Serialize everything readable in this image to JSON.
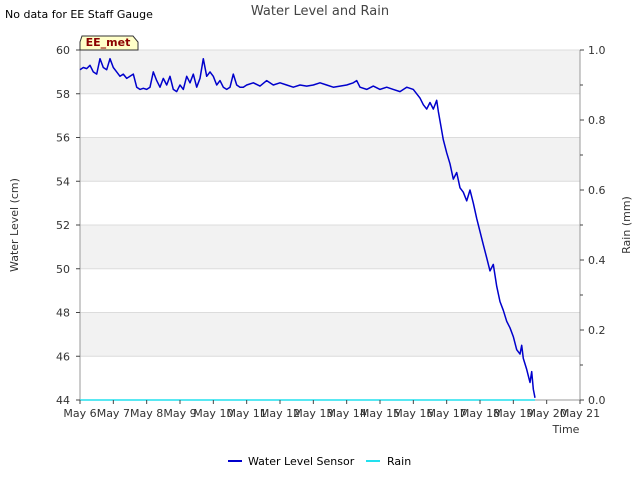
{
  "chart_data": {
    "type": "line",
    "title": "Water Level and Rain",
    "corner_note": "No data for EE Staff Gauge",
    "station_label": "EE_met",
    "xlabel": "Time",
    "ylabel_left": "Water Level (cm)",
    "ylabel_right": "Rain (mm)",
    "x_range_days": [
      0,
      15
    ],
    "ylim_left": [
      44,
      60
    ],
    "ylim_right": [
      0.0,
      1.0
    ],
    "x_ticks": [
      {
        "day": 0,
        "label": "May 6"
      },
      {
        "day": 1,
        "label": "May 7"
      },
      {
        "day": 2,
        "label": "May 8"
      },
      {
        "day": 3,
        "label": "May 9"
      },
      {
        "day": 4,
        "label": "May 10"
      },
      {
        "day": 5,
        "label": "May 11"
      },
      {
        "day": 6,
        "label": "May 12"
      },
      {
        "day": 7,
        "label": "May 13"
      },
      {
        "day": 8,
        "label": "May 14"
      },
      {
        "day": 9,
        "label": "May 15"
      },
      {
        "day": 10,
        "label": "May 16"
      },
      {
        "day": 11,
        "label": "May 17"
      },
      {
        "day": 12,
        "label": "May 18"
      },
      {
        "day": 13,
        "label": "May 19"
      },
      {
        "day": 14,
        "label": "May 20"
      },
      {
        "day": 15,
        "label": "May 21"
      }
    ],
    "y_ticks_left": [
      {
        "value": 44,
        "label": "44"
      },
      {
        "value": 46,
        "label": "46"
      },
      {
        "value": 48,
        "label": "48"
      },
      {
        "value": 50,
        "label": "50"
      },
      {
        "value": 52,
        "label": "52"
      },
      {
        "value": 54,
        "label": "54"
      },
      {
        "value": 56,
        "label": "56"
      },
      {
        "value": 58,
        "label": "58"
      },
      {
        "value": 60,
        "label": "60"
      }
    ],
    "y_ticks_right": [
      {
        "value": 0.0,
        "label": "0.0"
      },
      {
        "value": 0.2,
        "label": "0.2"
      },
      {
        "value": 0.4,
        "label": "0.4"
      },
      {
        "value": 0.6,
        "label": "0.6"
      },
      {
        "value": 0.8,
        "label": "0.8"
      },
      {
        "value": 1.0,
        "label": "1.0"
      }
    ],
    "series": [
      {
        "name": "Water Level Sensor",
        "color": "#0000cc",
        "axis": "left",
        "points": [
          [
            0.0,
            59.1
          ],
          [
            0.1,
            59.2
          ],
          [
            0.2,
            59.15
          ],
          [
            0.3,
            59.3
          ],
          [
            0.4,
            59.0
          ],
          [
            0.5,
            58.9
          ],
          [
            0.6,
            59.6
          ],
          [
            0.7,
            59.2
          ],
          [
            0.8,
            59.1
          ],
          [
            0.9,
            59.6
          ],
          [
            1.0,
            59.2
          ],
          [
            1.1,
            59.0
          ],
          [
            1.2,
            58.8
          ],
          [
            1.3,
            58.9
          ],
          [
            1.4,
            58.7
          ],
          [
            1.5,
            58.8
          ],
          [
            1.6,
            58.9
          ],
          [
            1.7,
            58.3
          ],
          [
            1.8,
            58.2
          ],
          [
            1.9,
            58.25
          ],
          [
            2.0,
            58.2
          ],
          [
            2.1,
            58.3
          ],
          [
            2.2,
            59.0
          ],
          [
            2.3,
            58.6
          ],
          [
            2.4,
            58.3
          ],
          [
            2.5,
            58.7
          ],
          [
            2.6,
            58.4
          ],
          [
            2.7,
            58.8
          ],
          [
            2.8,
            58.2
          ],
          [
            2.9,
            58.1
          ],
          [
            3.0,
            58.4
          ],
          [
            3.1,
            58.2
          ],
          [
            3.2,
            58.8
          ],
          [
            3.3,
            58.5
          ],
          [
            3.4,
            58.9
          ],
          [
            3.5,
            58.3
          ],
          [
            3.6,
            58.7
          ],
          [
            3.7,
            59.6
          ],
          [
            3.8,
            58.8
          ],
          [
            3.9,
            59.0
          ],
          [
            4.0,
            58.8
          ],
          [
            4.1,
            58.4
          ],
          [
            4.2,
            58.6
          ],
          [
            4.3,
            58.3
          ],
          [
            4.4,
            58.2
          ],
          [
            4.5,
            58.3
          ],
          [
            4.6,
            58.9
          ],
          [
            4.7,
            58.4
          ],
          [
            4.8,
            58.3
          ],
          [
            4.9,
            58.3
          ],
          [
            5.0,
            58.4
          ],
          [
            5.2,
            58.5
          ],
          [
            5.4,
            58.35
          ],
          [
            5.6,
            58.6
          ],
          [
            5.8,
            58.4
          ],
          [
            6.0,
            58.5
          ],
          [
            6.2,
            58.4
          ],
          [
            6.4,
            58.3
          ],
          [
            6.6,
            58.4
          ],
          [
            6.8,
            58.35
          ],
          [
            7.0,
            58.4
          ],
          [
            7.2,
            58.5
          ],
          [
            7.4,
            58.4
          ],
          [
            7.6,
            58.3
          ],
          [
            7.8,
            58.35
          ],
          [
            8.0,
            58.4
          ],
          [
            8.2,
            58.5
          ],
          [
            8.3,
            58.6
          ],
          [
            8.4,
            58.3
          ],
          [
            8.6,
            58.2
          ],
          [
            8.8,
            58.35
          ],
          [
            9.0,
            58.2
          ],
          [
            9.2,
            58.3
          ],
          [
            9.4,
            58.2
          ],
          [
            9.6,
            58.1
          ],
          [
            9.8,
            58.3
          ],
          [
            10.0,
            58.2
          ],
          [
            10.1,
            58.0
          ],
          [
            10.2,
            57.8
          ],
          [
            10.3,
            57.5
          ],
          [
            10.4,
            57.3
          ],
          [
            10.5,
            57.6
          ],
          [
            10.6,
            57.3
          ],
          [
            10.7,
            57.7
          ],
          [
            10.75,
            57.2
          ],
          [
            10.9,
            55.9
          ],
          [
            11.0,
            55.3
          ],
          [
            11.1,
            54.8
          ],
          [
            11.2,
            54.1
          ],
          [
            11.3,
            54.4
          ],
          [
            11.4,
            53.7
          ],
          [
            11.5,
            53.5
          ],
          [
            11.6,
            53.1
          ],
          [
            11.7,
            53.6
          ],
          [
            11.8,
            53.0
          ],
          [
            11.9,
            52.3
          ],
          [
            12.0,
            51.7
          ],
          [
            12.1,
            51.1
          ],
          [
            12.2,
            50.5
          ],
          [
            12.3,
            49.9
          ],
          [
            12.4,
            50.2
          ],
          [
            12.5,
            49.2
          ],
          [
            12.6,
            48.5
          ],
          [
            12.7,
            48.1
          ],
          [
            12.8,
            47.6
          ],
          [
            12.9,
            47.3
          ],
          [
            13.0,
            46.9
          ],
          [
            13.1,
            46.3
          ],
          [
            13.2,
            46.1
          ],
          [
            13.25,
            46.5
          ],
          [
            13.3,
            45.9
          ],
          [
            13.4,
            45.4
          ],
          [
            13.5,
            44.8
          ],
          [
            13.55,
            45.3
          ],
          [
            13.6,
            44.5
          ],
          [
            13.65,
            44.1
          ]
        ]
      },
      {
        "name": "Rain",
        "color": "#22e0ee",
        "axis": "right",
        "points": [
          [
            0.0,
            0.0
          ],
          [
            13.65,
            0.0
          ]
        ]
      }
    ]
  }
}
